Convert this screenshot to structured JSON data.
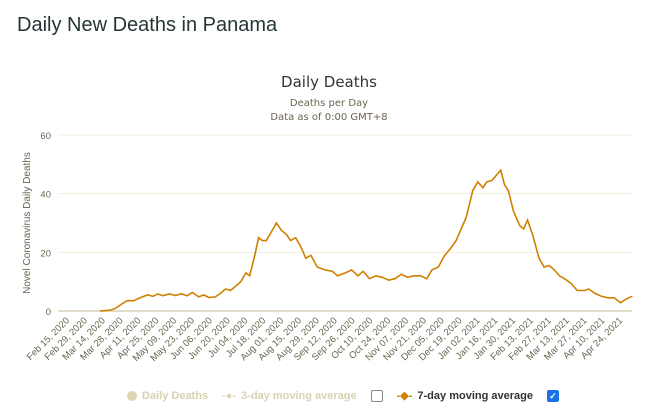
{
  "page_title": "Daily New Deaths in Panama",
  "chart_data": {
    "type": "line",
    "title": "Daily Deaths",
    "subtitle_1": "Deaths per Day",
    "subtitle_2": "Data as of 0:00 GMT+8",
    "ylabel": "Novel Coronavirus Daily Deaths",
    "xlabel": "",
    "ylim": [
      0,
      60
    ],
    "y_ticks": [
      "0",
      "20",
      "40",
      "60"
    ],
    "x_domain": [
      "2020-02-15",
      "2021-05-01"
    ],
    "x_ticks": [
      "Feb 15, 2020",
      "Feb 29, 2020",
      "Mar 14, 2020",
      "Mar 28, 2020",
      "Apr 11, 2020",
      "Apr 25, 2020",
      "May 09, 2020",
      "May 23, 2020",
      "Jun 06, 2020",
      "Jun 20, 2020",
      "Jul 04, 2020",
      "Jul 18, 2020",
      "Aug 01, 2020",
      "Aug 15, 2020",
      "Aug 29, 2020",
      "Sep 12, 2020",
      "Sep 26, 2020",
      "Oct 10, 2020",
      "Oct 24, 2020",
      "Nov 07, 2020",
      "Nov 21, 2020",
      "Dec 05, 2020",
      "Dec 19, 2020",
      "Jan 02, 2021",
      "Jan 16, 2021",
      "Jan 30, 2021",
      "Feb 13, 2021",
      "Feb 27, 2021",
      "Mar 13, 2021",
      "Mar 27, 2021",
      "Apr 10, 2021",
      "Apr 24, 2021"
    ],
    "grid": true,
    "legend_position": "bottom",
    "series": [
      {
        "name": "7-day moving average",
        "color": "#d08000",
        "visible": true,
        "points": [
          [
            "2020-03-10",
            0
          ],
          [
            "2020-03-18",
            0.3
          ],
          [
            "2020-03-22",
            1
          ],
          [
            "2020-03-27",
            2.5
          ],
          [
            "2020-03-31",
            3.5
          ],
          [
            "2020-04-05",
            3.5
          ],
          [
            "2020-04-10",
            4.5
          ],
          [
            "2020-04-16",
            5.5
          ],
          [
            "2020-04-20",
            5
          ],
          [
            "2020-04-24",
            5.8
          ],
          [
            "2020-04-28",
            5.2
          ],
          [
            "2020-05-03",
            5.8
          ],
          [
            "2020-05-08",
            5.3
          ],
          [
            "2020-05-12",
            5.9
          ],
          [
            "2020-05-17",
            5.2
          ],
          [
            "2020-05-21",
            6.3
          ],
          [
            "2020-05-26",
            4.8
          ],
          [
            "2020-05-30",
            5.5
          ],
          [
            "2020-06-03",
            4.6
          ],
          [
            "2020-06-08",
            4.8
          ],
          [
            "2020-06-12",
            6
          ],
          [
            "2020-06-16",
            7.5
          ],
          [
            "2020-06-20",
            7
          ],
          [
            "2020-06-24",
            8.5
          ],
          [
            "2020-06-28",
            10
          ],
          [
            "2020-07-02",
            13
          ],
          [
            "2020-07-05",
            12
          ],
          [
            "2020-07-09",
            19
          ],
          [
            "2020-07-12",
            25
          ],
          [
            "2020-07-15",
            24
          ],
          [
            "2020-07-18",
            24
          ],
          [
            "2020-07-22",
            27
          ],
          [
            "2020-07-26",
            30
          ],
          [
            "2020-07-30",
            27.5
          ],
          [
            "2020-08-03",
            26
          ],
          [
            "2020-08-06",
            24
          ],
          [
            "2020-08-10",
            25
          ],
          [
            "2020-08-14",
            22
          ],
          [
            "2020-08-18",
            18
          ],
          [
            "2020-08-22",
            19
          ],
          [
            "2020-08-27",
            15
          ],
          [
            "2020-09-02",
            14
          ],
          [
            "2020-09-08",
            13.5
          ],
          [
            "2020-09-12",
            12
          ],
          [
            "2020-09-18",
            13
          ],
          [
            "2020-09-23",
            14
          ],
          [
            "2020-09-28",
            12
          ],
          [
            "2020-10-02",
            13.5
          ],
          [
            "2020-10-07",
            11
          ],
          [
            "2020-10-12",
            12
          ],
          [
            "2020-10-17",
            11.5
          ],
          [
            "2020-10-22",
            10.5
          ],
          [
            "2020-10-27",
            11
          ],
          [
            "2020-11-01",
            12.5
          ],
          [
            "2020-11-06",
            11.5
          ],
          [
            "2020-11-11",
            12
          ],
          [
            "2020-11-16",
            12
          ],
          [
            "2020-11-21",
            11
          ],
          [
            "2020-11-25",
            14
          ],
          [
            "2020-11-30",
            15
          ],
          [
            "2020-12-05",
            19
          ],
          [
            "2020-12-09",
            21
          ],
          [
            "2020-12-14",
            24
          ],
          [
            "2020-12-18",
            28
          ],
          [
            "2020-12-22",
            32
          ],
          [
            "2020-12-27",
            41
          ],
          [
            "2020-12-31",
            44
          ],
          [
            "2021-01-04",
            42
          ],
          [
            "2021-01-07",
            44
          ],
          [
            "2021-01-11",
            44.5
          ],
          [
            "2021-01-14",
            46
          ],
          [
            "2021-01-18",
            48
          ],
          [
            "2021-01-21",
            43
          ],
          [
            "2021-01-24",
            41
          ],
          [
            "2021-01-28",
            34
          ],
          [
            "2021-02-02",
            29
          ],
          [
            "2021-02-05",
            28
          ],
          [
            "2021-02-08",
            31
          ],
          [
            "2021-02-12",
            26
          ],
          [
            "2021-02-17",
            18
          ],
          [
            "2021-02-21",
            15
          ],
          [
            "2021-02-25",
            15.5
          ],
          [
            "2021-03-01",
            14
          ],
          [
            "2021-03-05",
            12
          ],
          [
            "2021-03-09",
            11
          ],
          [
            "2021-03-14",
            9.5
          ],
          [
            "2021-03-19",
            7
          ],
          [
            "2021-03-25",
            7
          ],
          [
            "2021-03-28",
            7.5
          ],
          [
            "2021-04-02",
            6
          ],
          [
            "2021-04-07",
            5
          ],
          [
            "2021-04-12",
            4.5
          ],
          [
            "2021-04-17",
            4.5
          ],
          [
            "2021-04-22",
            2.8
          ],
          [
            "2021-04-26",
            4
          ],
          [
            "2021-05-01",
            5
          ]
        ]
      }
    ],
    "legend": [
      {
        "label": "Daily Deaths",
        "enabled": false
      },
      {
        "label": "3-day moving average",
        "enabled": false
      },
      {
        "label": "7-day moving average",
        "enabled": true
      }
    ]
  }
}
